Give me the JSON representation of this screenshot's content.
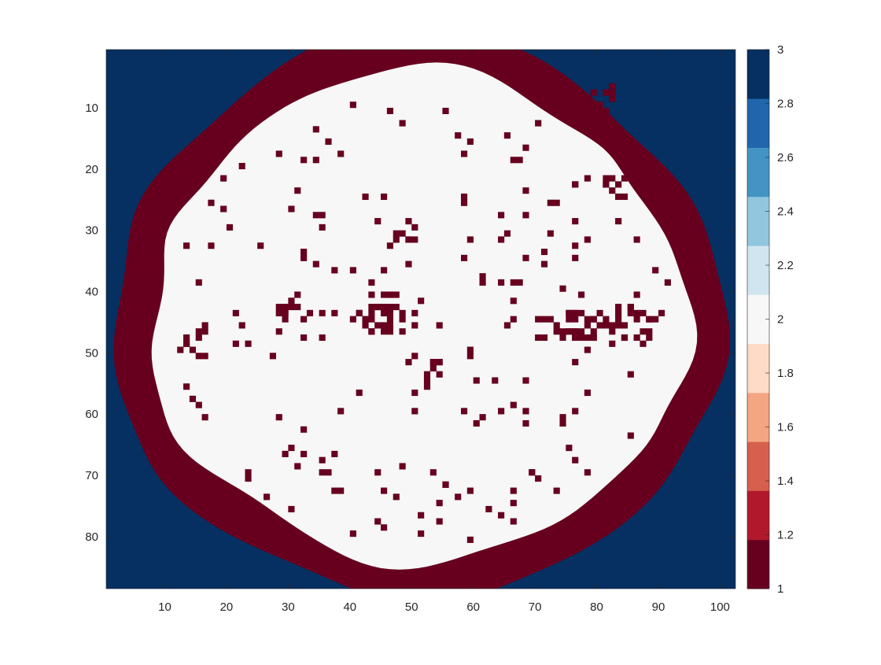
{
  "chart_data": {
    "type": "heatmap",
    "title": "",
    "xlabel": "",
    "ylabel": "",
    "x_range": [
      1,
      102
    ],
    "y_range": [
      1,
      88
    ],
    "y_direction": "reverse",
    "x_ticks": [
      10,
      20,
      30,
      40,
      50,
      60,
      70,
      80,
      90,
      100
    ],
    "y_ticks": [
      10,
      20,
      30,
      40,
      50,
      60,
      70,
      80
    ],
    "value_levels": [
      {
        "value": 1,
        "color": "#67001f",
        "meaning": "boundary ring"
      },
      {
        "value": 2,
        "color": "#f7f7f7",
        "meaning": "interior"
      },
      {
        "value": 3,
        "color": "#053061",
        "meaning": "exterior"
      }
    ],
    "region_shape": "near-circular field centered near (51, 44), white interior (value 2) surrounded by a dark red band (value 1), with dark blue exterior (value 3); scattered isolated value-1 pixels inside the interior, denser clusters near rows 40-50",
    "colorbar": {
      "limits": [
        1,
        3
      ],
      "ticks": [
        "1",
        "1.2",
        "1.4",
        "1.6",
        "1.8",
        "2",
        "2.2",
        "2.4",
        "2.6",
        "2.8",
        "3"
      ],
      "colors": [
        "#67001f",
        "#b2182b",
        "#d6604d",
        "#f4a582",
        "#fddbc7",
        "#f7f7f7",
        "#d1e5f0",
        "#92c5de",
        "#4393c3",
        "#2166ac",
        "#053061"
      ],
      "position": "right"
    },
    "grid": false
  }
}
